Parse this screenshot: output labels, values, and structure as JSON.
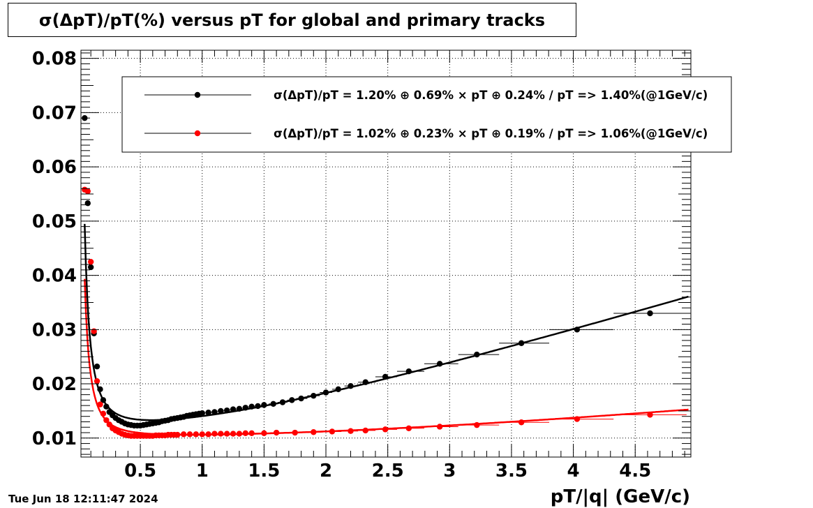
{
  "title": "σ(ΔpT)/pT(%) versus pT for global and primary tracks",
  "timestamp": "Tue Jun 18 12:11:47 2024",
  "colors": {
    "global": "#000000",
    "primary": "#ff0000",
    "frame": "#000000",
    "grid": "#000000"
  },
  "chart_data": {
    "type": "scatter",
    "title": "σ(ΔpT)/pT(%) versus pT for global and primary tracks",
    "xlabel": "pT/|q| (GeV/c)",
    "ylabel": "",
    "xlim": [
      0.02,
      4.95
    ],
    "ylim": [
      0.0065,
      0.0815
    ],
    "grid": true,
    "legend_position": "top-right",
    "x_ticks": [
      0.5,
      1,
      1.5,
      2,
      2.5,
      3,
      3.5,
      4,
      4.5
    ],
    "x_tick_labels": [
      "0.5",
      "1",
      "1.5",
      "2",
      "2.5",
      "3",
      "3.5",
      "4",
      "4.5"
    ],
    "y_ticks": [
      0.01,
      0.02,
      0.03,
      0.04,
      0.05,
      0.06,
      0.07,
      0.08
    ],
    "y_tick_labels": [
      "0.01",
      "0.02",
      "0.03",
      "0.04",
      "0.05",
      "0.06",
      "0.07",
      "0.08"
    ],
    "series": [
      {
        "key": "global",
        "legend": "σ(ΔpT)/pT =  1.20% ⊕  0.69% × pT ⊕  0.24% / pT =>  1.40%(@1GeV/c)",
        "fit": {
          "a": 0.012,
          "b": 0.0069,
          "c": 0.0024
        },
        "points": [
          [
            0.05,
            0.069
          ],
          [
            0.075,
            0.0533
          ],
          [
            0.1,
            0.0415
          ],
          [
            0.125,
            0.0293
          ],
          [
            0.15,
            0.0232
          ],
          [
            0.175,
            0.019
          ],
          [
            0.2,
            0.017
          ],
          [
            0.225,
            0.0158
          ],
          [
            0.25,
            0.0148
          ],
          [
            0.275,
            0.0142
          ],
          [
            0.3,
            0.0137
          ],
          [
            0.325,
            0.0133
          ],
          [
            0.35,
            0.013
          ],
          [
            0.375,
            0.0127
          ],
          [
            0.4,
            0.0125
          ],
          [
            0.425,
            0.0124
          ],
          [
            0.45,
            0.0123
          ],
          [
            0.475,
            0.0123
          ],
          [
            0.5,
            0.0123
          ],
          [
            0.525,
            0.0124
          ],
          [
            0.55,
            0.0125
          ],
          [
            0.575,
            0.0126
          ],
          [
            0.6,
            0.0127
          ],
          [
            0.625,
            0.0128
          ],
          [
            0.65,
            0.0129
          ],
          [
            0.675,
            0.0131
          ],
          [
            0.7,
            0.0132
          ],
          [
            0.725,
            0.0133
          ],
          [
            0.75,
            0.0135
          ],
          [
            0.775,
            0.0136
          ],
          [
            0.8,
            0.0137
          ],
          [
            0.825,
            0.0138
          ],
          [
            0.85,
            0.0139
          ],
          [
            0.875,
            0.0141
          ],
          [
            0.9,
            0.0142
          ],
          [
            0.925,
            0.0143
          ],
          [
            0.95,
            0.0144
          ],
          [
            0.975,
            0.0145
          ],
          [
            1.0,
            0.0146
          ],
          [
            1.05,
            0.0147
          ],
          [
            1.1,
            0.0148
          ],
          [
            1.15,
            0.015
          ],
          [
            1.2,
            0.0151
          ],
          [
            1.25,
            0.0153
          ],
          [
            1.3,
            0.0154
          ],
          [
            1.35,
            0.0156
          ],
          [
            1.4,
            0.0158
          ],
          [
            1.45,
            0.0159
          ],
          [
            1.5,
            0.0161
          ],
          [
            1.575,
            0.0163
          ],
          [
            1.65,
            0.0166
          ],
          [
            1.725,
            0.017
          ],
          [
            1.8,
            0.0173
          ],
          [
            1.9,
            0.0178
          ],
          [
            2.0,
            0.0184
          ],
          [
            2.1,
            0.019
          ],
          [
            2.2,
            0.0196
          ],
          [
            2.32,
            0.0203
          ],
          [
            2.48,
            0.0213
          ],
          [
            2.67,
            0.0223
          ],
          [
            2.92,
            0.0237
          ],
          [
            3.22,
            0.0254
          ],
          [
            3.58,
            0.0275
          ],
          [
            4.03,
            0.03
          ],
          [
            4.62,
            0.033
          ]
        ]
      },
      {
        "key": "primary",
        "legend": "σ(ΔpT)/pT =  1.02% ⊕  0.23% × pT ⊕  0.19% / pT =>  1.06%(@1GeV/c)",
        "fit": {
          "a": 0.0102,
          "b": 0.0023,
          "c": 0.0019
        },
        "points": [
          [
            0.05,
            0.0558
          ],
          [
            0.075,
            0.0555
          ],
          [
            0.1,
            0.0425
          ],
          [
            0.125,
            0.0297
          ],
          [
            0.15,
            0.0205
          ],
          [
            0.175,
            0.0162
          ],
          [
            0.2,
            0.0145
          ],
          [
            0.225,
            0.0133
          ],
          [
            0.25,
            0.0125
          ],
          [
            0.275,
            0.0118
          ],
          [
            0.3,
            0.0114
          ],
          [
            0.325,
            0.0111
          ],
          [
            0.35,
            0.0108
          ],
          [
            0.375,
            0.0106
          ],
          [
            0.4,
            0.0105
          ],
          [
            0.425,
            0.0104
          ],
          [
            0.45,
            0.0104
          ],
          [
            0.475,
            0.0104
          ],
          [
            0.5,
            0.0104
          ],
          [
            0.525,
            0.0104
          ],
          [
            0.55,
            0.0104
          ],
          [
            0.575,
            0.0104
          ],
          [
            0.6,
            0.0104
          ],
          [
            0.625,
            0.0105
          ],
          [
            0.65,
            0.0105
          ],
          [
            0.675,
            0.0105
          ],
          [
            0.7,
            0.0105
          ],
          [
            0.725,
            0.0106
          ],
          [
            0.75,
            0.0106
          ],
          [
            0.775,
            0.0106
          ],
          [
            0.8,
            0.0106
          ],
          [
            0.85,
            0.0107
          ],
          [
            0.9,
            0.0107
          ],
          [
            0.95,
            0.0107
          ],
          [
            1.0,
            0.0107
          ],
          [
            1.05,
            0.0107
          ],
          [
            1.1,
            0.0108
          ],
          [
            1.15,
            0.0108
          ],
          [
            1.2,
            0.0108
          ],
          [
            1.25,
            0.0108
          ],
          [
            1.3,
            0.0108
          ],
          [
            1.35,
            0.0109
          ],
          [
            1.4,
            0.0109
          ],
          [
            1.5,
            0.0109
          ],
          [
            1.6,
            0.011
          ],
          [
            1.75,
            0.011
          ],
          [
            1.9,
            0.0111
          ],
          [
            2.05,
            0.0112
          ],
          [
            2.2,
            0.0113
          ],
          [
            2.32,
            0.0114
          ],
          [
            2.48,
            0.0116
          ],
          [
            2.67,
            0.0118
          ],
          [
            2.92,
            0.0121
          ],
          [
            3.22,
            0.0124
          ],
          [
            3.58,
            0.0129
          ],
          [
            4.03,
            0.0135
          ],
          [
            4.62,
            0.0143
          ]
        ]
      }
    ]
  }
}
